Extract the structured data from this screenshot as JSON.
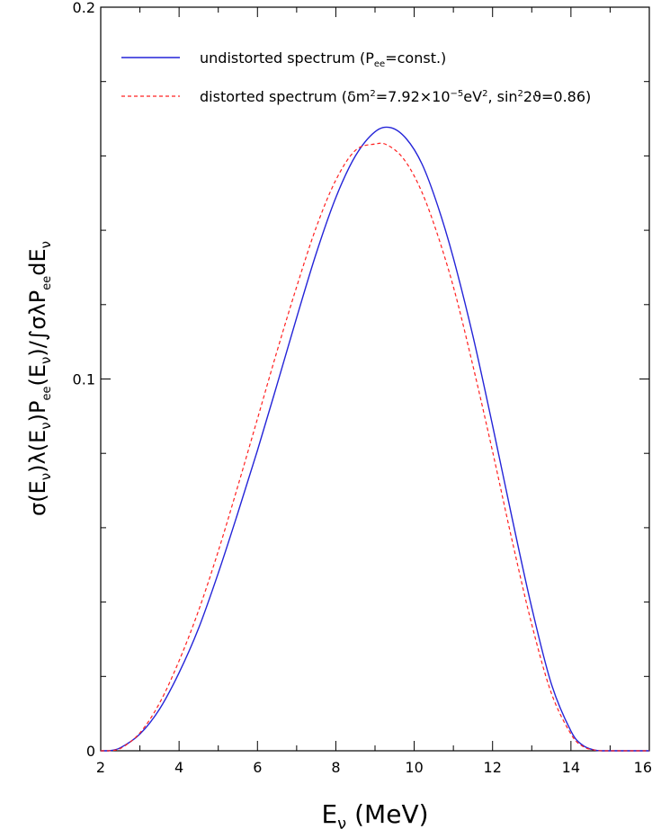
{
  "chart_data": {
    "type": "line",
    "xlim": [
      2,
      16
    ],
    "ylim": [
      0,
      0.2
    ],
    "x_major_ticks": [
      2,
      4,
      6,
      8,
      10,
      12,
      14,
      16
    ],
    "x_tick_labels": [
      "2",
      "4",
      "6",
      "8",
      "10",
      "12",
      "14",
      "16"
    ],
    "y_major_ticks": [
      0,
      0.1,
      0.2
    ],
    "y_tick_labels": [
      "0",
      "0.1",
      "0.2"
    ],
    "xlabel": {
      "prefix": "E",
      "subscript": "ν",
      "suffix": " (MeV)"
    },
    "ylabel": {
      "text": "σ(E",
      "sub1": "ν",
      "mid1": ")λ(E",
      "sub2": "ν",
      "mid2": ")P",
      "sub3": "ee",
      "mid3": "(E",
      "sub4": "ν",
      "mid4": ")/∫σλP",
      "sub5": "ee",
      "mid5": "dE",
      "sub6": "ν"
    },
    "grid": false,
    "legend_position": "top",
    "series": [
      {
        "name": "undistorted spectrum (Pee=const.)",
        "legend_parts": {
          "a": "undistorted spectrum (P",
          "sub": "ee",
          "b": "=const.)"
        },
        "color": "#2424d8",
        "dash": "solid",
        "x": [
          2.0,
          2.2,
          2.5,
          3.0,
          3.5,
          4.0,
          4.5,
          5.0,
          5.5,
          6.0,
          6.5,
          7.0,
          7.5,
          8.0,
          8.5,
          9.0,
          9.4,
          9.8,
          10.2,
          10.6,
          11.0,
          11.5,
          12.0,
          12.5,
          13.0,
          13.5,
          14.0,
          14.3,
          14.6,
          14.8,
          15.0,
          16.0
        ],
        "y": [
          0.0,
          0.0,
          0.0008,
          0.0045,
          0.0112,
          0.021,
          0.033,
          0.0478,
          0.064,
          0.0808,
          0.0985,
          0.1165,
          0.1338,
          0.1488,
          0.16,
          0.1665,
          0.1676,
          0.1646,
          0.1578,
          0.1466,
          0.1325,
          0.1115,
          0.0875,
          0.0625,
          0.0385,
          0.018,
          0.0053,
          0.0015,
          0.0002,
          0.0,
          0.0,
          0.0
        ]
      },
      {
        "name": "distorted spectrum (δm²=7.92×10⁻⁵eV², sin²2ϑ=0.86)",
        "legend_parts": {
          "a": "distorted spectrum (δm",
          "sup1": "2",
          "b": "=7.92×10",
          "sup2": "−5",
          "c": "eV",
          "sup3": "2",
          "d": ", sin",
          "sup4": "2",
          "e": "2ϑ=0.86)"
        },
        "color": "#ff2020",
        "dash": "dashed",
        "x": [
          2.0,
          2.2,
          2.5,
          3.0,
          3.5,
          4.0,
          4.5,
          5.0,
          5.5,
          6.0,
          6.5,
          7.0,
          7.5,
          8.0,
          8.5,
          9.0,
          9.3,
          9.7,
          10.1,
          10.5,
          11.0,
          11.5,
          12.0,
          12.5,
          13.0,
          13.5,
          14.0,
          14.3,
          14.6,
          14.8,
          15.0,
          16.0
        ],
        "y": [
          0.0,
          0.0,
          0.0006,
          0.0048,
          0.0128,
          0.0242,
          0.0378,
          0.0537,
          0.0712,
          0.0893,
          0.1075,
          0.1248,
          0.1408,
          0.1535,
          0.1615,
          0.1632,
          0.163,
          0.1596,
          0.1525,
          0.1418,
          0.1248,
          0.1035,
          0.0805,
          0.0565,
          0.034,
          0.0155,
          0.0045,
          0.0012,
          0.0002,
          0.0,
          0.0,
          0.0
        ]
      }
    ]
  }
}
